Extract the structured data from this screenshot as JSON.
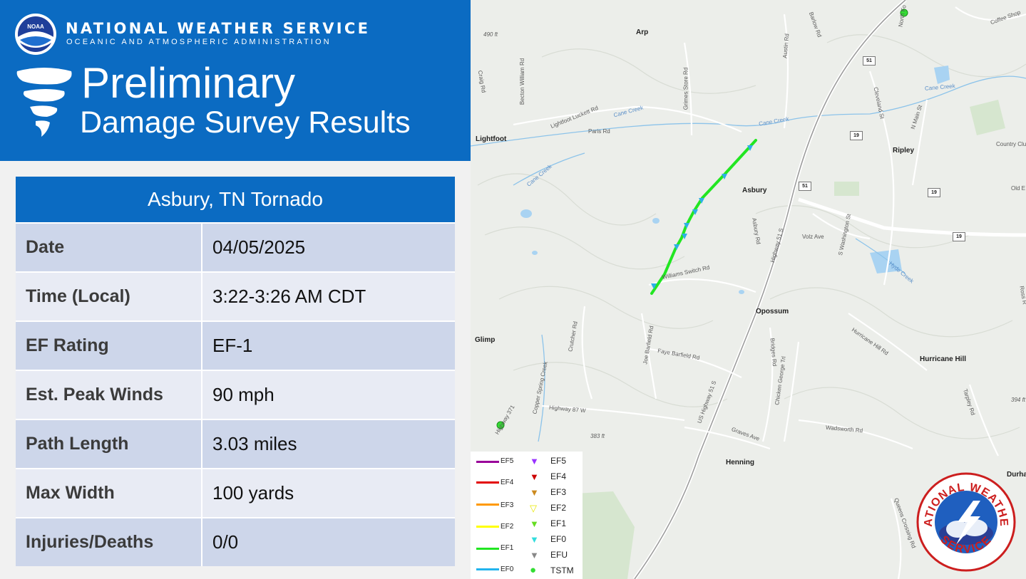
{
  "header": {
    "org_name": "NATIONAL WEATHER SERVICE",
    "org_sub": "OCEANIC AND ATMOSPHERIC ADMINISTRATION",
    "noaa_logo_text": "NOAA",
    "title_main": "Preliminary",
    "title_sub": "Damage Survey Results"
  },
  "card": {
    "title": "Asbury, TN Tornado",
    "rows": [
      {
        "label": "Date",
        "value": "04/05/2025"
      },
      {
        "label": "Time (Local)",
        "value": "3:22-3:26 AM CDT"
      },
      {
        "label": "EF Rating",
        "value": "EF-1"
      },
      {
        "label": "Est. Peak Winds",
        "value": "90 mph"
      },
      {
        "label": "Path Length",
        "value": "3.03 miles"
      },
      {
        "label": "Max Width",
        "value": "100 yards"
      },
      {
        "label": "Injuries/Deaths",
        "value": "0/0"
      }
    ]
  },
  "map": {
    "towns": [
      "Arp",
      "Lightfoot",
      "Ripley",
      "Asbury",
      "Opossum",
      "Glimp",
      "Hurricane Hill",
      "Henning",
      "Durha",
      "Old E",
      "Ross R"
    ],
    "roads": [
      "Becton William Rd",
      "Craig Rd",
      "Lightfoot Luckett Rd",
      "Paris Rd",
      "Grimes Store Rd",
      "Austin Rd",
      "Barlow Rd",
      "Cleveland St",
      "N Main St",
      "Coffee Shop",
      "Country Club",
      "Volz Ave",
      "S Washington St",
      "Highway 51 S",
      "Asbury Rd",
      "Williams Switch Rd",
      "Crutcher Rd",
      "Joe Barfield Rd",
      "Faye Barfield Rd",
      "Bridges Rd",
      "Chicken George Trl",
      "Hurricane Hill Rd",
      "Highway 87 W",
      "Copper Spring Creek",
      "Highway 371",
      "US Highway 51 S",
      "Graves Ave",
      "Wadsworth Rd",
      "Tarpley Rd",
      "Queens Crossing Rd",
      "North Fo"
    ],
    "creeks": [
      "Cane Creek",
      "Hyde Creek"
    ],
    "elevations": [
      "490 ft",
      "383 ft",
      "394 ft"
    ],
    "shields": [
      "51",
      "19"
    ],
    "colors": {
      "track": "#22e622",
      "marker": "#2db0e6",
      "water": "#a9d3f2"
    }
  },
  "legend": {
    "lines": [
      {
        "label": "EF5",
        "color": "#990099"
      },
      {
        "label": "EF4",
        "color": "#e30000"
      },
      {
        "label": "EF3",
        "color": "#ff9900"
      },
      {
        "label": "EF2",
        "color": "#ffff00"
      },
      {
        "label": "EF1",
        "color": "#22e622"
      },
      {
        "label": "EF0",
        "color": "#22b4ee"
      }
    ],
    "symbols": [
      {
        "label": "EF5",
        "color": "#9933ff",
        "shape": "triangle"
      },
      {
        "label": "EF4",
        "color": "#cc0000",
        "shape": "triangle"
      },
      {
        "label": "EF3",
        "color": "#cc8a1f",
        "shape": "triangle"
      },
      {
        "label": "EF2",
        "color": "#e8e800",
        "shape": "triangle"
      },
      {
        "label": "EF1",
        "color": "#66dd22",
        "shape": "triangle"
      },
      {
        "label": "EF0",
        "color": "#33dddd",
        "shape": "triangle"
      },
      {
        "label": "EFU",
        "color": "#888888",
        "shape": "triangle"
      },
      {
        "label": "TSTM",
        "color": "#33dd33",
        "shape": "circle"
      }
    ]
  },
  "nws_logo": {
    "top_text": "NATIONAL WEATHER",
    "bottom_text": "SERVICE"
  }
}
